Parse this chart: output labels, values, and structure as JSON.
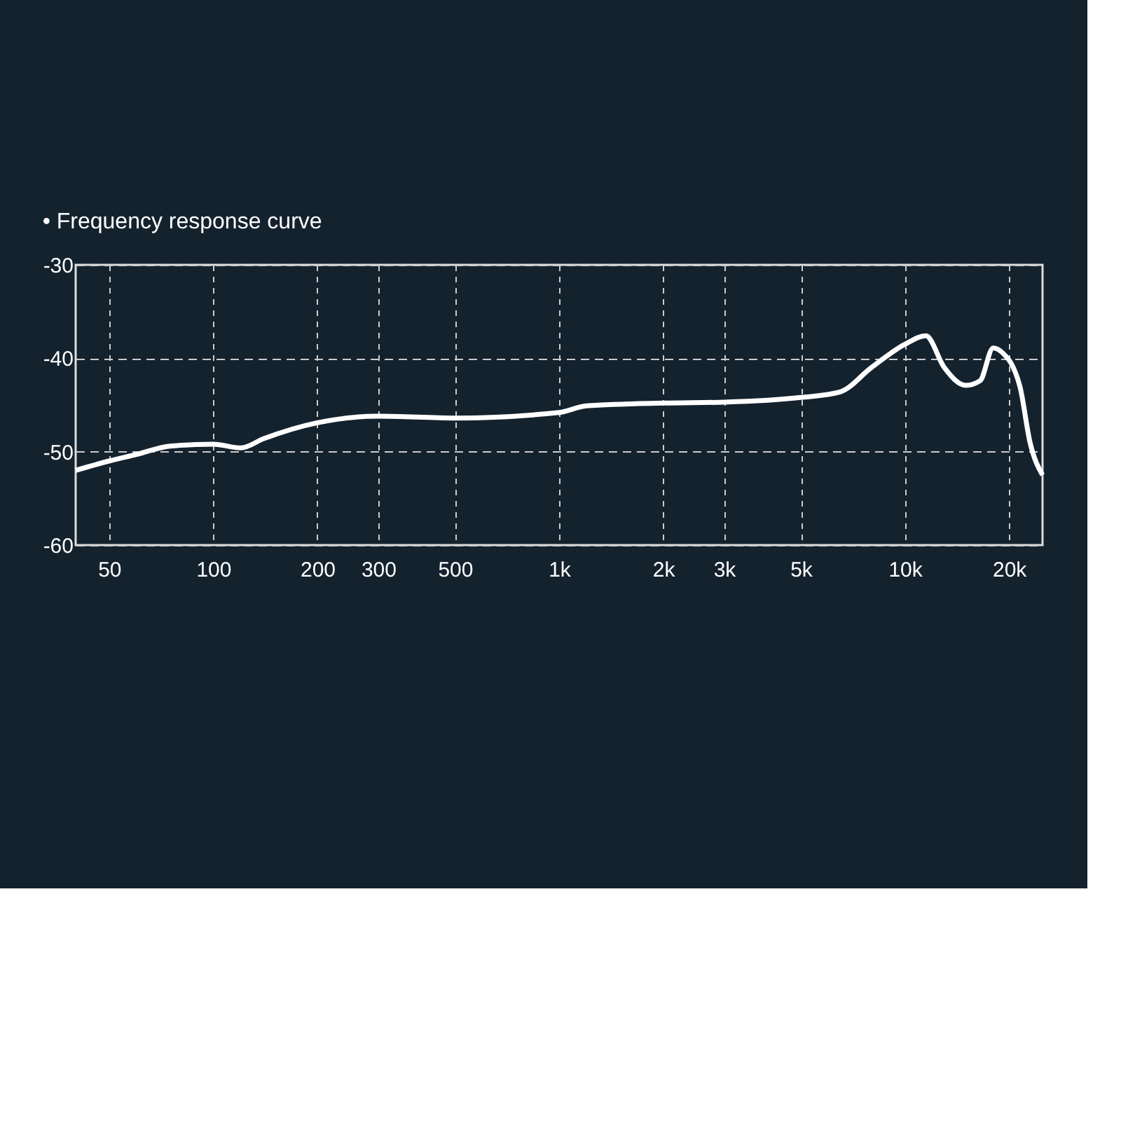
{
  "chart_data": {
    "type": "line",
    "title": "• Frequency response curve",
    "x": [
      40,
      50,
      60,
      75,
      100,
      120,
      140,
      200,
      300,
      500,
      1000,
      1200,
      2000,
      3000,
      5000,
      6500,
      8000,
      10000,
      11500,
      13000,
      15000,
      16500,
      18000,
      19000,
      21500,
      23000,
      25000
    ],
    "series": [
      {
        "color": "#ffffff",
        "values": [
          -52,
          -51,
          -50.3,
          -49.4,
          -49.2,
          -49.6,
          -48.6,
          -46.9,
          -46.2,
          -46.4,
          -45.8,
          -45.1,
          -44.8,
          -44.7,
          -44.2,
          -43.6,
          -41,
          -38.5,
          -37.6,
          -41,
          -42.9,
          -42.4,
          -38.9,
          -39.3,
          -43,
          -49,
          -52.5
        ]
      }
    ],
    "log": "x",
    "xlim": [
      40,
      25000
    ],
    "ylim": [
      -60,
      -30
    ],
    "xticks": [
      50,
      100,
      200,
      300,
      500,
      {
        "value": 1000,
        "label": "1k"
      },
      {
        "value": 2000,
        "label": "2k"
      },
      {
        "value": 3000,
        "label": "3k"
      },
      {
        "value": 5000,
        "label": "5k"
      },
      {
        "value": 10000,
        "label": "10k"
      },
      {
        "value": 20000,
        "label": "20k"
      }
    ],
    "yticks": [
      -60,
      -50,
      -40,
      -30
    ],
    "grid": true,
    "marker": "none",
    "line_style": "solid"
  }
}
